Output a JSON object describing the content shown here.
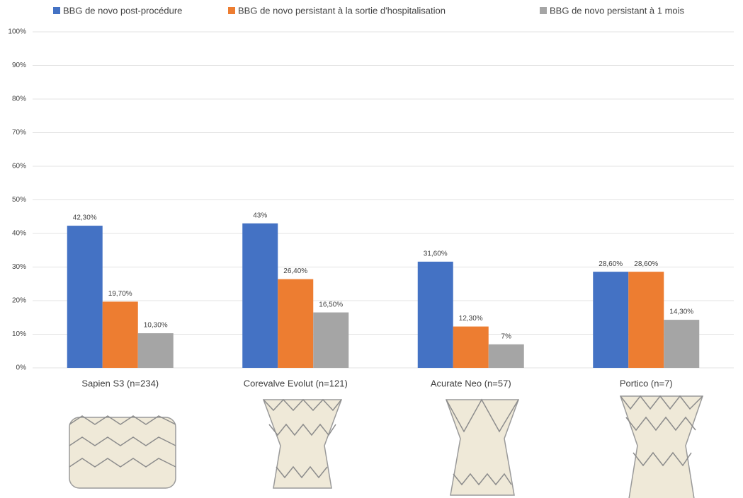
{
  "chart_data": {
    "type": "bar",
    "categories": [
      "Sapien S3 (n=234)",
      "Corevalve Evolut (n=121)",
      "Acurate Neo (n=57)",
      "Portico (n=7)"
    ],
    "series": [
      {
        "name": "BBG de novo post-procédure",
        "color": "#4472c4",
        "values": [
          42.3,
          43,
          31.6,
          28.6
        ],
        "value_labels": [
          "42,30%",
          "43%",
          "31,60%",
          "28,60%"
        ]
      },
      {
        "name": "BBG de novo persistant à la sortie d'hospitalisation",
        "color": "#ed7d31",
        "values": [
          19.7,
          26.4,
          12.3,
          28.6
        ],
        "value_labels": [
          "19,70%",
          "26,40%",
          "12,30%",
          "28,60%"
        ]
      },
      {
        "name": "BBG de novo persistant à 1 mois",
        "color": "#a5a5a5",
        "values": [
          10.3,
          16.5,
          7,
          14.3
        ],
        "value_labels": [
          "10,30%",
          "16,50%",
          "7%",
          "14,30%"
        ]
      }
    ],
    "ylim": [
      0,
      100
    ],
    "yticks": [
      {
        "value": 0,
        "label": "0%"
      },
      {
        "value": 10,
        "label": "10%"
      },
      {
        "value": 20,
        "label": "20%"
      },
      {
        "value": 30,
        "label": "30%"
      },
      {
        "value": 40,
        "label": "40%"
      },
      {
        "value": 50,
        "label": "50%"
      },
      {
        "value": 60,
        "label": "60%"
      },
      {
        "value": 70,
        "label": "70%"
      },
      {
        "value": 80,
        "label": "80%"
      },
      {
        "value": 90,
        "label": "90%"
      },
      {
        "value": 100,
        "label": "100%"
      }
    ],
    "grid": true,
    "legend": "top"
  }
}
